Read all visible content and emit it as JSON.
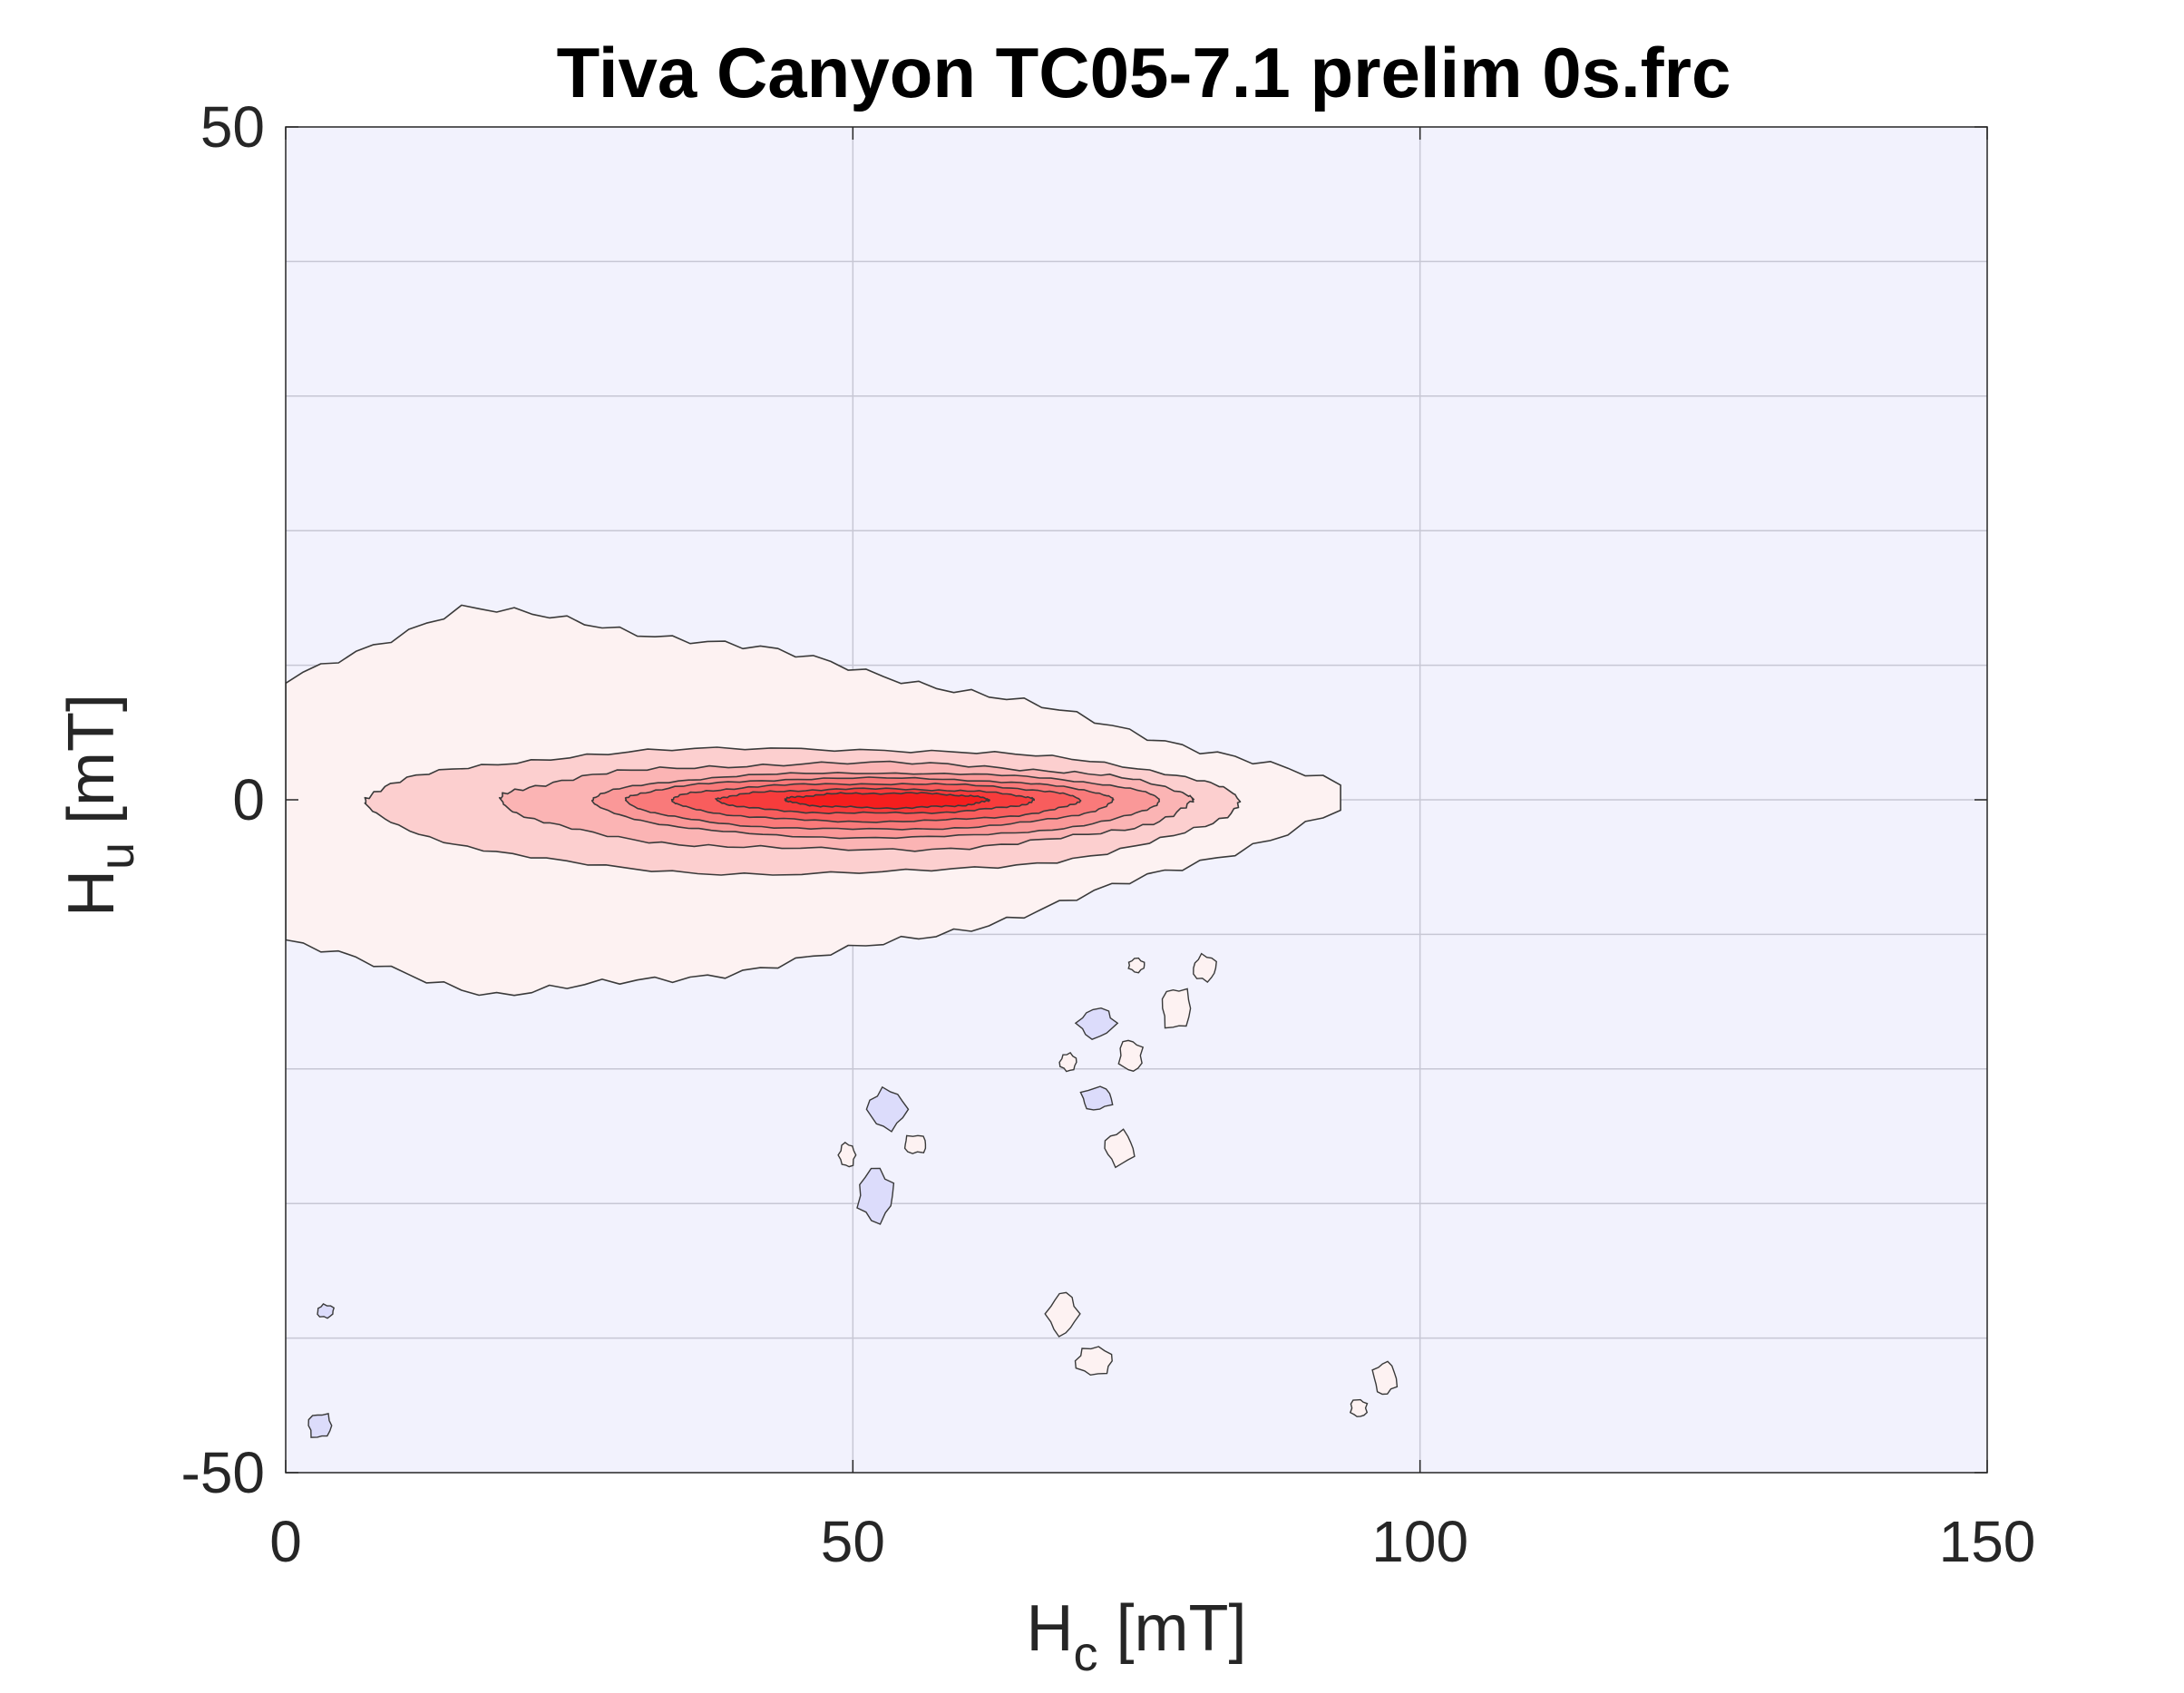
{
  "chart_data": {
    "type": "contour",
    "title": "Tiva Canyon TC05-7.1 prelim 0s.frc",
    "xlabel": {
      "main": "H",
      "sub": "c",
      "unit": " [mT]"
    },
    "ylabel": {
      "main": "H",
      "sub": "u",
      "unit": " [mT]"
    },
    "xlim": [
      0,
      150
    ],
    "ylim": [
      -50,
      50
    ],
    "xticks": [
      0,
      50,
      100,
      150
    ],
    "yticks": [
      -50,
      0,
      50
    ],
    "x_gridlines": [
      50,
      100
    ],
    "y_gridlines": [
      -40,
      -30,
      -20,
      -10,
      0,
      10,
      20,
      30,
      40
    ],
    "grid": true,
    "colors": {
      "background": "#f2f2fd",
      "grid": "#c7c7d4",
      "contour_line": "#3a3a3a",
      "positive_levels": [
        "#fdf2f2",
        "#fccfcf",
        "#fbb4b4",
        "#fa9898",
        "#f97a7a",
        "#f85d5d",
        "#f73c3c",
        "#f51e1e"
      ],
      "negative_levels": [
        "#dcdcfb"
      ]
    },
    "positive_region": {
      "peak": {
        "hc": 55,
        "hu": 0
      },
      "levels": [
        {
          "level": 1,
          "hc_range": [
            0,
            93
          ],
          "hu_range": [
            -14,
            14
          ]
        },
        {
          "level": 2,
          "hc_range": [
            7,
            84
          ],
          "hu_range": [
            -5.5,
            3.8
          ]
        },
        {
          "level": 3,
          "hc_range": [
            19,
            80
          ],
          "hu_range": [
            -3.7,
            2.7
          ]
        },
        {
          "level": 4,
          "hc_range": [
            27,
            77
          ],
          "hu_range": [
            -2.8,
            2.0
          ]
        },
        {
          "level": 5,
          "hc_range": [
            30,
            73
          ],
          "hu_range": [
            -2.2,
            1.6
          ]
        },
        {
          "level": 6,
          "hc_range": [
            34,
            70
          ],
          "hu_range": [
            -1.6,
            1.2
          ]
        },
        {
          "level": 7,
          "hc_range": [
            38,
            66
          ],
          "hu_range": [
            -1.0,
            0.8
          ]
        },
        {
          "level": 8,
          "hc_range": [
            44,
            62
          ],
          "hu_range": [
            -0.6,
            0.5
          ]
        }
      ]
    },
    "minor_patches": [
      {
        "sign": "positive",
        "hc": 75,
        "hu": -12.3
      },
      {
        "sign": "positive",
        "hc": 81,
        "hu": -12.5
      },
      {
        "sign": "positive",
        "hc": 78.5,
        "hu": -15.5
      },
      {
        "sign": "negative",
        "hc": 71.5,
        "hu": -16.6
      },
      {
        "sign": "positive",
        "hc": 69,
        "hu": -19.5
      },
      {
        "sign": "positive",
        "hc": 74.5,
        "hu": -19.0
      },
      {
        "sign": "negative",
        "hc": 71.5,
        "hu": -22.2
      },
      {
        "sign": "negative",
        "hc": 53,
        "hu": -23.0
      },
      {
        "sign": "positive",
        "hc": 49.5,
        "hu": -26.4
      },
      {
        "sign": "positive",
        "hc": 55.5,
        "hu": -25.6
      },
      {
        "sign": "positive",
        "hc": 73.5,
        "hu": -25.9
      },
      {
        "sign": "negative",
        "hc": 52,
        "hu": -29.4
      },
      {
        "sign": "negative",
        "hc": 3.5,
        "hu": -38.0
      },
      {
        "sign": "negative",
        "hc": 3,
        "hu": -46.5
      },
      {
        "sign": "positive",
        "hc": 68.5,
        "hu": -38.2
      },
      {
        "sign": "positive",
        "hc": 71.3,
        "hu": -41.7
      },
      {
        "sign": "positive",
        "hc": 94.6,
        "hu": -45.2
      },
      {
        "sign": "positive",
        "hc": 96.9,
        "hu": -43.0
      }
    ]
  }
}
